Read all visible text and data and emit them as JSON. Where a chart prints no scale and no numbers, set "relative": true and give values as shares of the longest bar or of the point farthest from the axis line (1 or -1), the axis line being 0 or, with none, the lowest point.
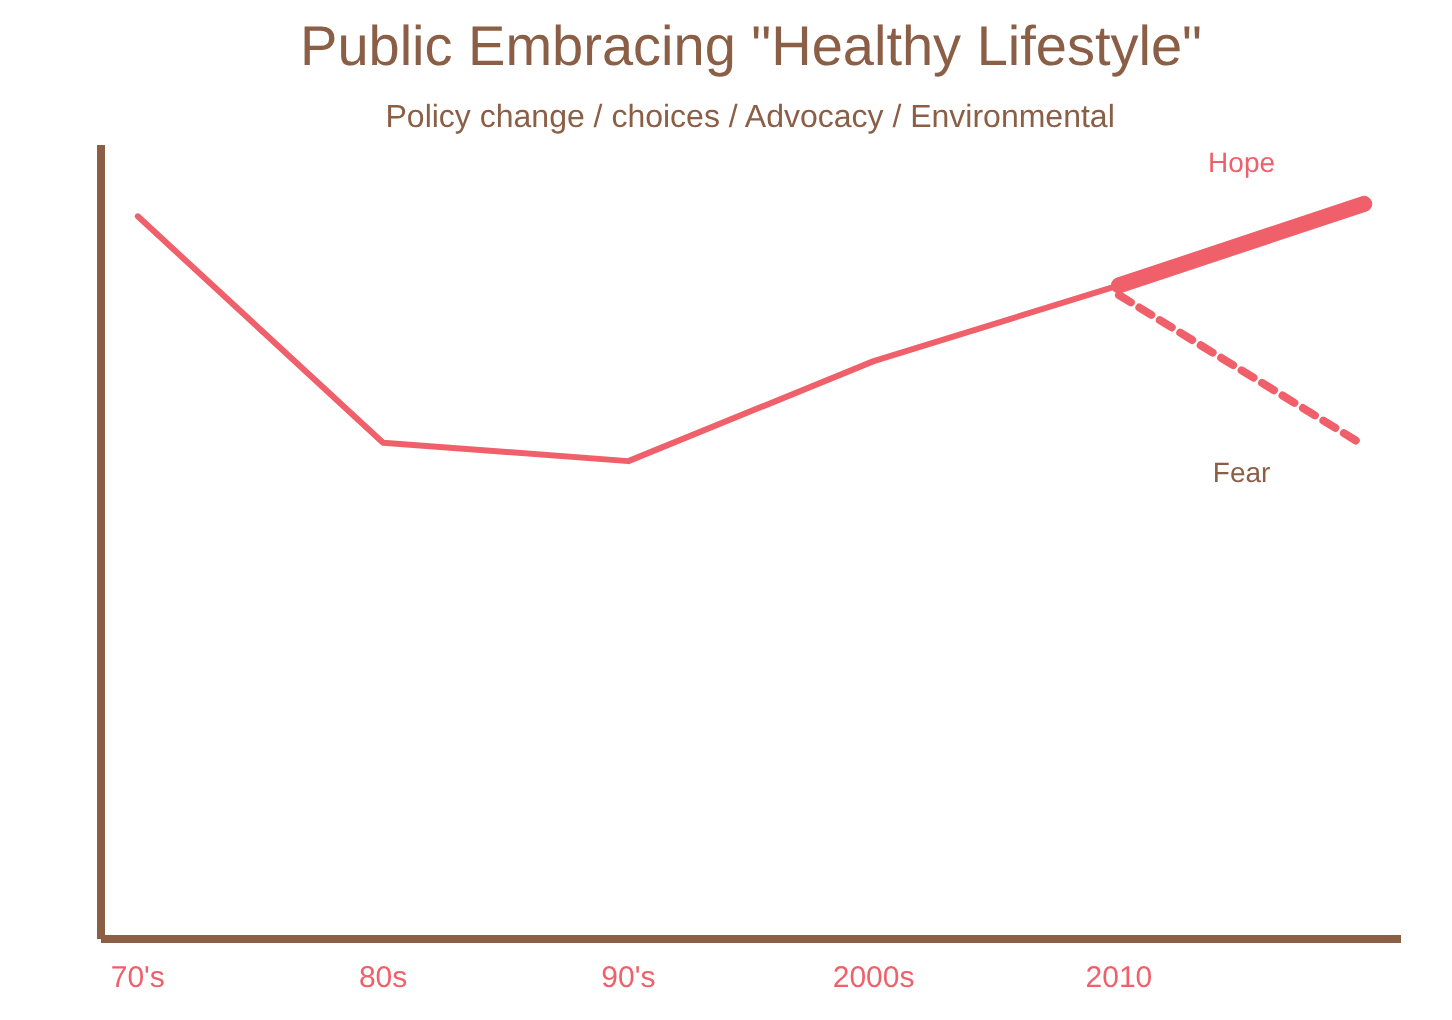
{
  "chart_data": {
    "type": "line",
    "title": "Public Embracing \"Healthy Lifestyle\"",
    "subtitle": "Policy change / choices / Advocacy / Environmental",
    "relative": true,
    "categories": [
      "70's",
      "80s",
      "90's",
      "2000s",
      "2010",
      null
    ],
    "series": [
      {
        "color": "#f0606a",
        "values": [
          0.983,
          0.675,
          0.65,
          0.786,
          0.889,
          null
        ]
      },
      {
        "name": "Hope",
        "color": "#f0606a",
        "values": [
          null,
          null,
          null,
          null,
          0.889,
          1.0
        ]
      },
      {
        "name": "Fear",
        "color": "#f0606a",
        "line_style": "dashed",
        "values": [
          null,
          null,
          null,
          null,
          0.876,
          0.671
        ]
      }
    ],
    "grid": false,
    "legend": false
  }
}
